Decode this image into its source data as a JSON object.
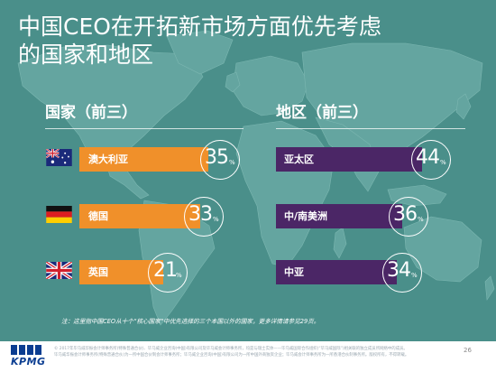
{
  "title_line1": "中国CEO在开拓新市场方面优先考虑",
  "title_line2": "的国家和地区",
  "countries": {
    "heading": "国家（前三）",
    "items": [
      {
        "label": "澳大利亚",
        "value": "35",
        "pct": "%"
      },
      {
        "label": "德国",
        "value": "33",
        "pct": "%"
      },
      {
        "label": "英国",
        "value": "21",
        "pct": "%"
      }
    ]
  },
  "regions": {
    "heading": "地区（前三）",
    "items": [
      {
        "label": "亚太区",
        "value": "44",
        "pct": "%"
      },
      {
        "label": "中/南美洲",
        "value": "36",
        "pct": "%"
      },
      {
        "label": "中亚",
        "value": "34",
        "pct": "%"
      }
    ]
  },
  "note": "注：这里指中国CEO从十个“核心国家“中优先选择的三个本国以外的国家，更多详情请参见29页。",
  "footer": {
    "line1": "© 2017年毕马威华振会计师事务所(特殊普通合伙)、毕马威企业咨询(中国)有限公司及毕马威会计师事务所，均是与瑞士实体——毕马威国际合作组织(“毕马威国际”)相关联的独立成员所网络中的成员。",
    "line2": "毕马威华振会计师事务所(特殊普通合伙)为一所中国合伙制会计师事务所；毕马威企业咨询(中国)有限公司为一所中国外商独资企业；毕马威会计师事务所为一所香港合伙制事务所。版权所有，不得转载。",
    "logo": "KPMG",
    "page": "26"
  },
  "colors": {
    "background": "#4a8f8a",
    "continent": "#64a5a0",
    "country_bar": "#f0902a",
    "region_bar": "#4b2666"
  }
}
